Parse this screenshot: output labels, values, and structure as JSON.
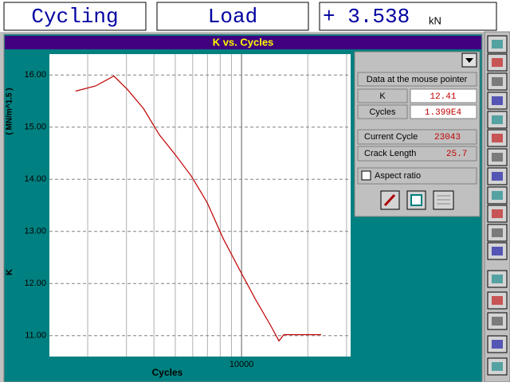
{
  "header": {
    "mode": "Cycling",
    "channel": "Load",
    "reading": "+ 3.538",
    "unit": "kN"
  },
  "panel": {
    "pointer_caption": "Data at the mouse pointer",
    "k_label": "K",
    "k_value": "12.41",
    "cycles_label": "Cycles",
    "cycles_value": "1.399E4",
    "current_cycle_label": "Current Cycle",
    "current_cycle_value": "23043",
    "crack_length_label": "Crack Length",
    "crack_length_value": "25.7",
    "aspect_ratio_label": "Aspect ratio"
  },
  "chart_data": {
    "type": "line",
    "title": "K vs. Cycles",
    "x_label": "Cycles",
    "y_label": "K",
    "y_unit": "( MN/m^1.5 )",
    "x": [
      1762,
      2173,
      2630,
      3034,
      3580,
      4236,
      5003,
      5915,
      6985,
      8260,
      9753,
      11525,
      13620,
      14790,
      15560,
      19010,
      23010
    ],
    "series": [
      {
        "name": "K",
        "color": "#c00000",
        "values": [
          15.69,
          15.79,
          15.98,
          15.72,
          15.36,
          14.85,
          14.47,
          14.06,
          13.55,
          12.86,
          12.28,
          11.71,
          11.18,
          10.9,
          11.02,
          11.02,
          11.02
        ]
      }
    ],
    "x_log": true,
    "xlim": [
      1340,
      31300
    ],
    "xticks": [
      10000
    ],
    "xminor": [
      2000,
      3000,
      4000,
      5000,
      6000,
      7000,
      8000,
      9000,
      20000,
      30000
    ],
    "ylim": [
      10.6,
      16.4
    ],
    "yticks": [
      {
        "value": 11,
        "label": "11.00"
      },
      {
        "value": 12,
        "label": "12.00"
      },
      {
        "value": 13,
        "label": "13.00"
      },
      {
        "value": 14,
        "label": "14.00"
      },
      {
        "value": 15,
        "label": "15.00"
      },
      {
        "value": 16,
        "label": "16.00"
      }
    ],
    "grid": true
  }
}
